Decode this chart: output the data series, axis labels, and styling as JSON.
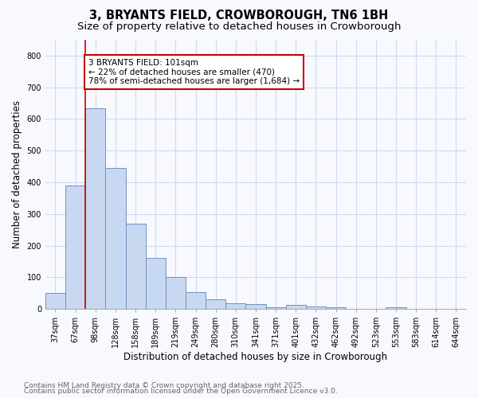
{
  "title_line1": "3, BRYANTS FIELD, CROWBOROUGH, TN6 1BH",
  "title_line2": "Size of property relative to detached houses in Crowborough",
  "xlabel": "Distribution of detached houses by size in Crowborough",
  "ylabel": "Number of detached properties",
  "bar_color": "#c8d8f0",
  "bar_edge_color": "#7090c0",
  "bar_edge_width": 0.7,
  "categories": [
    "37sqm",
    "67sqm",
    "98sqm",
    "128sqm",
    "158sqm",
    "189sqm",
    "219sqm",
    "249sqm",
    "280sqm",
    "310sqm",
    "341sqm",
    "371sqm",
    "401sqm",
    "432sqm",
    "462sqm",
    "492sqm",
    "523sqm",
    "553sqm",
    "583sqm",
    "614sqm",
    "644sqm"
  ],
  "values": [
    50,
    390,
    635,
    445,
    270,
    160,
    100,
    53,
    30,
    18,
    15,
    5,
    12,
    8,
    4,
    0,
    0,
    5,
    0,
    0,
    0
  ],
  "red_line_index": 2,
  "annotation_text": "3 BRYANTS FIELD: 101sqm\n← 22% of detached houses are smaller (470)\n78% of semi-detached houses are larger (1,684) →",
  "annotation_box_color": "#ffffff",
  "annotation_box_edge_color": "#cc0000",
  "red_line_color": "#cc0000",
  "ylim": [
    0,
    850
  ],
  "yticks": [
    0,
    100,
    200,
    300,
    400,
    500,
    600,
    700,
    800
  ],
  "footnote_line1": "Contains HM Land Registry data © Crown copyright and database right 2025.",
  "footnote_line2": "Contains public sector information licensed under the Open Government Licence v3.0.",
  "bg_color": "#f8f9ff",
  "plot_bg_color": "#f8f9ff",
  "grid_color": "#d0d8f0",
  "title_fontsize": 10.5,
  "subtitle_fontsize": 9.5,
  "axis_label_fontsize": 8.5,
  "tick_fontsize": 7,
  "annotation_fontsize": 7.5,
  "footnote_fontsize": 6.5
}
